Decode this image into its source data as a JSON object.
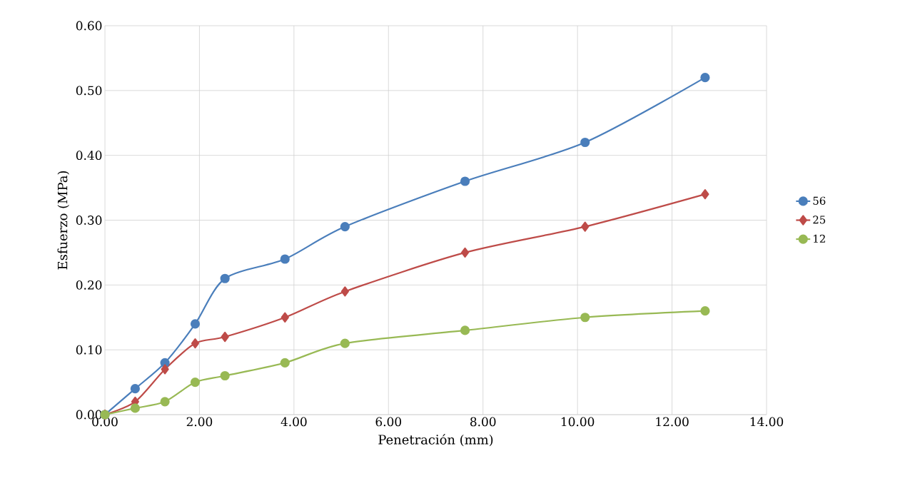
{
  "chart_data": {
    "type": "line",
    "xlabel": "Penetración (mm)",
    "ylabel": "Esfuerzo (MPa)",
    "x": [
      0,
      0.64,
      1.27,
      1.91,
      2.54,
      3.81,
      5.08,
      7.62,
      10.16,
      12.7
    ],
    "series": [
      {
        "name": "56",
        "color": "#4a7ebb",
        "marker": "circle",
        "values": [
          0,
          0.04,
          0.08,
          0.14,
          0.21,
          0.24,
          0.29,
          0.36,
          0.42,
          0.52
        ]
      },
      {
        "name": "25",
        "color": "#be4b48",
        "marker": "diamond",
        "values": [
          0,
          0.02,
          0.07,
          0.11,
          0.12,
          0.15,
          0.19,
          0.25,
          0.29,
          0.34
        ]
      },
      {
        "name": "12",
        "color": "#98b954",
        "marker": "circle",
        "values": [
          0,
          0.01,
          0.02,
          0.05,
          0.06,
          0.08,
          0.11,
          0.13,
          0.15,
          0.16
        ]
      }
    ],
    "xlim": [
      0,
      14
    ],
    "ylim": [
      0,
      0.6
    ],
    "xticks": [
      {
        "value": 0,
        "label": "0.00"
      },
      {
        "value": 2,
        "label": "2.00"
      },
      {
        "value": 4,
        "label": "4.00"
      },
      {
        "value": 6,
        "label": "6.00"
      },
      {
        "value": 8,
        "label": "8.00"
      },
      {
        "value": 10,
        "label": "10.00"
      },
      {
        "value": 12,
        "label": "12.00"
      },
      {
        "value": 14,
        "label": "14.00"
      }
    ],
    "yticks": [
      {
        "value": 0,
        "label": "0.00"
      },
      {
        "value": 0.1,
        "label": "0.10"
      },
      {
        "value": 0.2,
        "label": "0.20"
      },
      {
        "value": 0.3,
        "label": "0.30"
      },
      {
        "value": 0.4,
        "label": "0.40"
      },
      {
        "value": 0.5,
        "label": "0.50"
      },
      {
        "value": 0.6,
        "label": "0.60"
      }
    ],
    "grid": true,
    "legend": "right"
  }
}
